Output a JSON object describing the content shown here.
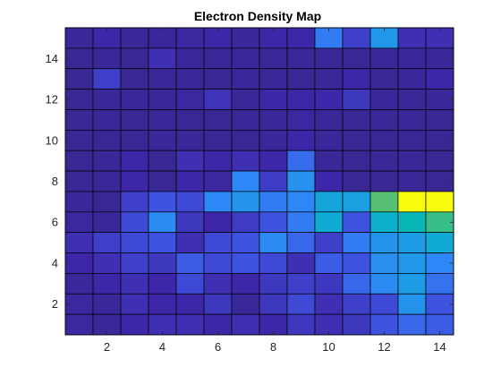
{
  "chart_data": {
    "type": "heatmap",
    "title": "Electron Density Map",
    "xlabel": "",
    "ylabel": "",
    "x_range": [
      0.5,
      14.5
    ],
    "y_range": [
      0.5,
      15.5
    ],
    "xticks": [
      2,
      4,
      6,
      8,
      10,
      12,
      14
    ],
    "yticks": [
      2,
      4,
      6,
      8,
      10,
      12,
      14
    ],
    "colormap": "parula",
    "value_range": [
      0,
      1
    ],
    "row_order": "top row is y=15, bottom row is y=1; columns x=1..14",
    "values": [
      [
        0.05,
        0.1,
        0.05,
        0.06,
        0.08,
        0.1,
        0.06,
        0.1,
        0.1,
        0.28,
        0.16,
        0.38,
        0.12,
        0.12
      ],
      [
        0.04,
        0.05,
        0.04,
        0.12,
        0.06,
        0.05,
        0.06,
        0.05,
        0.06,
        0.05,
        0.04,
        0.06,
        0.06,
        0.05
      ],
      [
        0.04,
        0.16,
        0.04,
        0.05,
        0.05,
        0.04,
        0.06,
        0.05,
        0.04,
        0.06,
        0.1,
        0.04,
        0.06,
        0.1
      ],
      [
        0.04,
        0.05,
        0.06,
        0.05,
        0.08,
        0.13,
        0.05,
        0.1,
        0.1,
        0.1,
        0.14,
        0.06,
        0.05,
        0.06
      ],
      [
        0.04,
        0.05,
        0.04,
        0.05,
        0.04,
        0.04,
        0.05,
        0.05,
        0.08,
        0.05,
        0.04,
        0.05,
        0.05,
        0.04
      ],
      [
        0.04,
        0.04,
        0.04,
        0.06,
        0.05,
        0.04,
        0.04,
        0.06,
        0.1,
        0.06,
        0.04,
        0.04,
        0.04,
        0.04
      ],
      [
        0.04,
        0.05,
        0.1,
        0.04,
        0.12,
        0.1,
        0.12,
        0.1,
        0.25,
        0.05,
        0.04,
        0.05,
        0.05,
        0.04
      ],
      [
        0.04,
        0.05,
        0.1,
        0.04,
        0.1,
        0.08,
        0.3,
        0.15,
        0.35,
        0.1,
        0.04,
        0.04,
        0.05,
        0.04
      ],
      [
        0.06,
        0.04,
        0.16,
        0.2,
        0.18,
        0.3,
        0.36,
        0.28,
        0.3,
        0.45,
        0.42,
        0.72,
        1.0,
        1.0
      ],
      [
        0.08,
        0.06,
        0.18,
        0.32,
        0.14,
        0.1,
        0.15,
        0.2,
        0.28,
        0.48,
        0.2,
        0.52,
        0.58,
        0.68
      ],
      [
        0.12,
        0.16,
        0.18,
        0.2,
        0.12,
        0.18,
        0.2,
        0.32,
        0.24,
        0.16,
        0.28,
        0.36,
        0.4,
        0.48
      ],
      [
        0.1,
        0.12,
        0.16,
        0.14,
        0.22,
        0.18,
        0.2,
        0.18,
        0.12,
        0.22,
        0.2,
        0.34,
        0.38,
        0.3
      ],
      [
        0.06,
        0.1,
        0.12,
        0.1,
        0.18,
        0.12,
        0.1,
        0.14,
        0.16,
        0.14,
        0.24,
        0.32,
        0.4,
        0.26
      ],
      [
        0.08,
        0.06,
        0.12,
        0.1,
        0.1,
        0.14,
        0.06,
        0.14,
        0.18,
        0.12,
        0.16,
        0.18,
        0.36,
        0.2
      ],
      [
        0.08,
        0.06,
        0.1,
        0.12,
        0.12,
        0.1,
        0.12,
        0.1,
        0.14,
        0.12,
        0.14,
        0.2,
        0.24,
        0.22
      ]
    ]
  }
}
